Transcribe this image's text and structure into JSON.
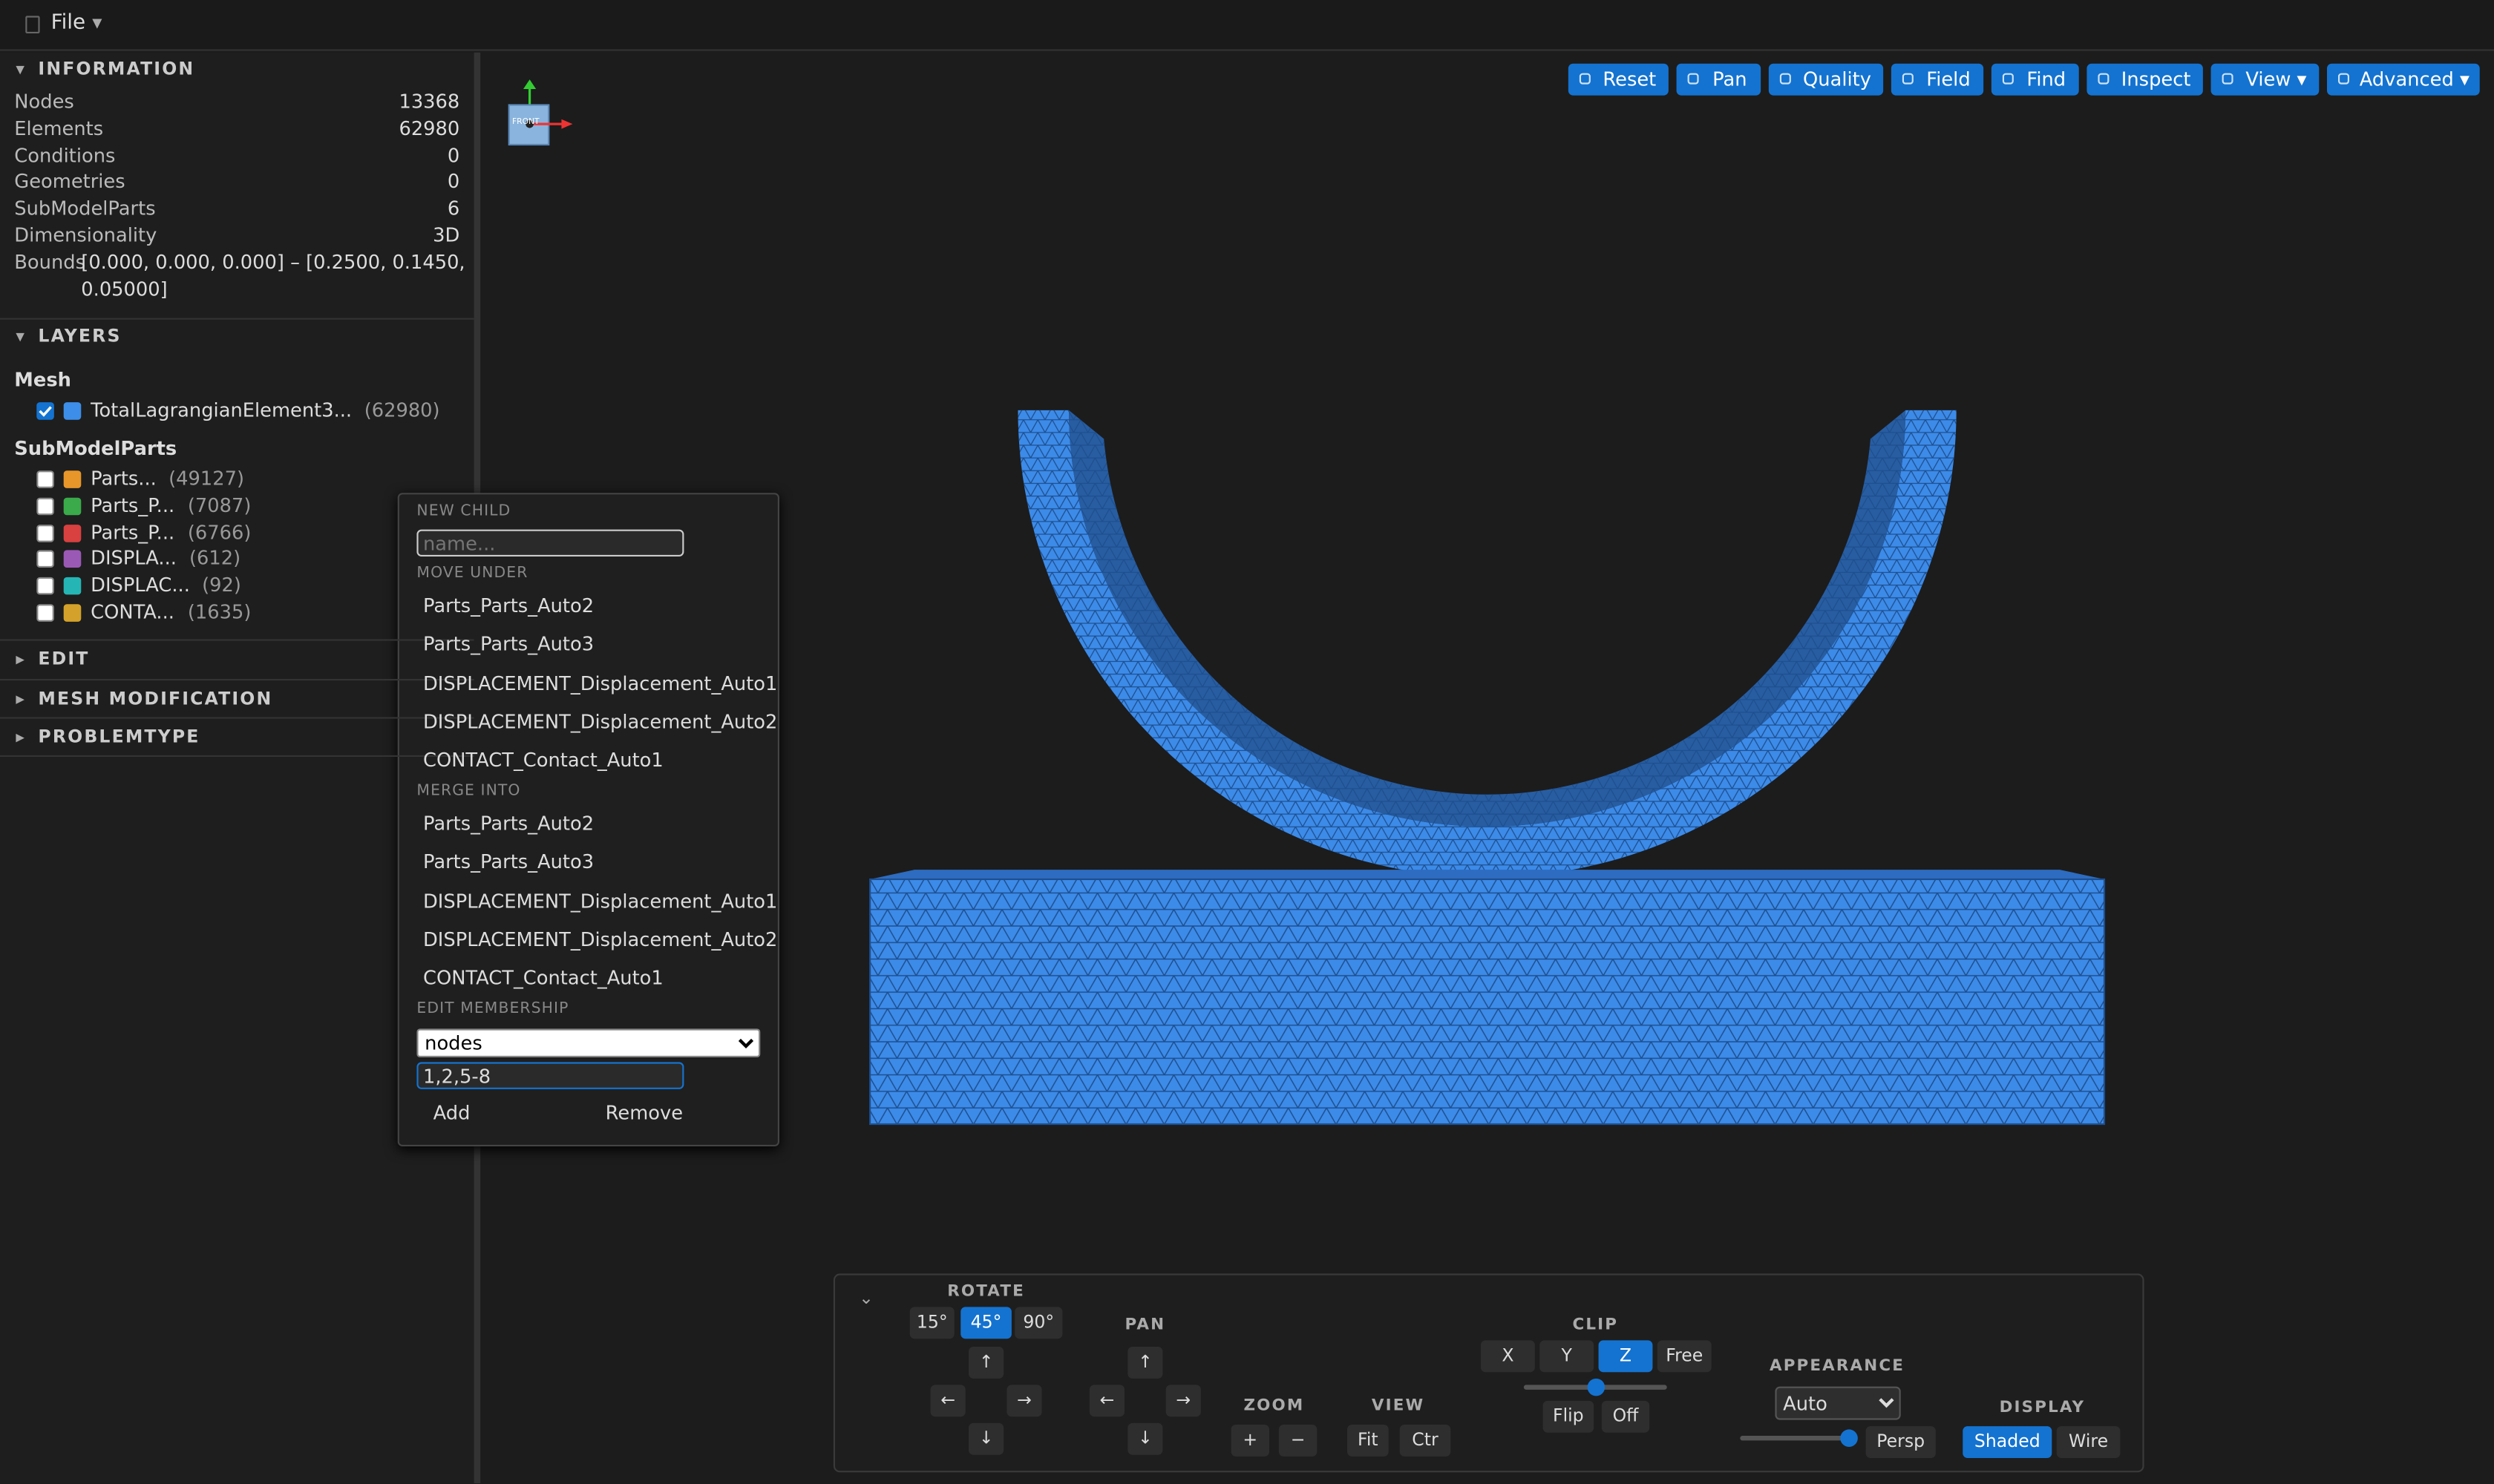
{
  "menu": {
    "file": "File"
  },
  "information": {
    "title": "INFORMATION",
    "rows": [
      [
        "Nodes",
        "13368"
      ],
      [
        "Elements",
        "62980"
      ],
      [
        "Conditions",
        "0"
      ],
      [
        "Geometries",
        "0"
      ],
      [
        "SubModelParts",
        "6"
      ],
      [
        "Dimensionality",
        "3D"
      ]
    ],
    "bounds_label": "Bounds",
    "bounds_line1": "[0.000, 0.000, 0.000] – [0.2500, 0.1450,",
    "bounds_line2": "0.05000]"
  },
  "layers": {
    "title": "LAYERS",
    "mesh_heading": "Mesh",
    "mesh_items": [
      {
        "name": "TotalLagrangianElement3...",
        "count": "(62980)",
        "color": "#3d8ee8",
        "checked": true
      }
    ],
    "submodel_heading": "SubModelParts",
    "submodel_items": [
      {
        "name": "Parts...",
        "count": "(49127)",
        "color": "#e8962a",
        "checked": false
      },
      {
        "name": "Parts_P...",
        "count": "(7087)",
        "color": "#3aaa4a",
        "checked": false
      },
      {
        "name": "Parts_P...",
        "count": "(6766)",
        "color": "#d94040",
        "checked": false
      },
      {
        "name": "DISPLA...",
        "count": "(612)",
        "color": "#9b59b6",
        "checked": false
      },
      {
        "name": "DISPLAC...",
        "count": "(92)",
        "color": "#26b5b5",
        "checked": false
      },
      {
        "name": "CONTA...",
        "count": "(1635)",
        "color": "#d4a22a",
        "checked": false
      }
    ]
  },
  "sections": [
    "EDIT",
    "MESH MODIFICATION",
    "PROBLEMTYPE"
  ],
  "context_menu": {
    "new_child": "NEW CHILD",
    "name_placeholder": "name...",
    "move_under": "MOVE UNDER",
    "move_items": [
      "Parts_Parts_Auto2",
      "Parts_Parts_Auto3",
      "DISPLACEMENT_Displacement_Auto1",
      "DISPLACEMENT_Displacement_Auto2",
      "CONTACT_Contact_Auto1"
    ],
    "merge_into": "MERGE INTO",
    "merge_items": [
      "Parts_Parts_Auto2",
      "Parts_Parts_Auto3",
      "DISPLACEMENT_Displacement_Auto1",
      "DISPLACEMENT_Displacement_Auto2",
      "CONTACT_Contact_Auto1"
    ],
    "edit_membership": "EDIT MEMBERSHIP",
    "membership_type": "nodes",
    "membership_ids": "1,2,5-8",
    "add": "Add",
    "remove": "Remove"
  },
  "toolbar": [
    "Reset",
    "Pan",
    "Quality",
    "Field",
    "Find",
    "Inspect",
    "View ▾",
    "Advanced ▾"
  ],
  "gizmo": {
    "label": "FRONT"
  },
  "controls": {
    "collapse": "⌄",
    "rotate": {
      "title": "ROTATE",
      "steps": [
        "15°",
        "45°",
        "90°"
      ],
      "active": 1,
      "arrows": [
        "↑",
        "←",
        "→",
        "↓"
      ]
    },
    "pan": {
      "title": "PAN",
      "arrows": [
        "↑",
        "←",
        "→",
        "↓"
      ]
    },
    "zoom": {
      "title": "ZOOM",
      "buttons": [
        "+",
        "−"
      ]
    },
    "view": {
      "title": "VIEW",
      "buttons": [
        "Fit",
        "Ctr"
      ]
    },
    "clip": {
      "title": "CLIP",
      "axes": [
        "X",
        "Y",
        "Z",
        "Free"
      ],
      "active": 2,
      "buttons": [
        "Flip",
        "Off"
      ]
    },
    "appearance": {
      "title": "APPEARANCE",
      "mode": "Auto",
      "button": "Persp"
    },
    "display": {
      "title": "DISPLAY",
      "modes": [
        "Shaded",
        "Wire"
      ],
      "active": 0
    }
  }
}
